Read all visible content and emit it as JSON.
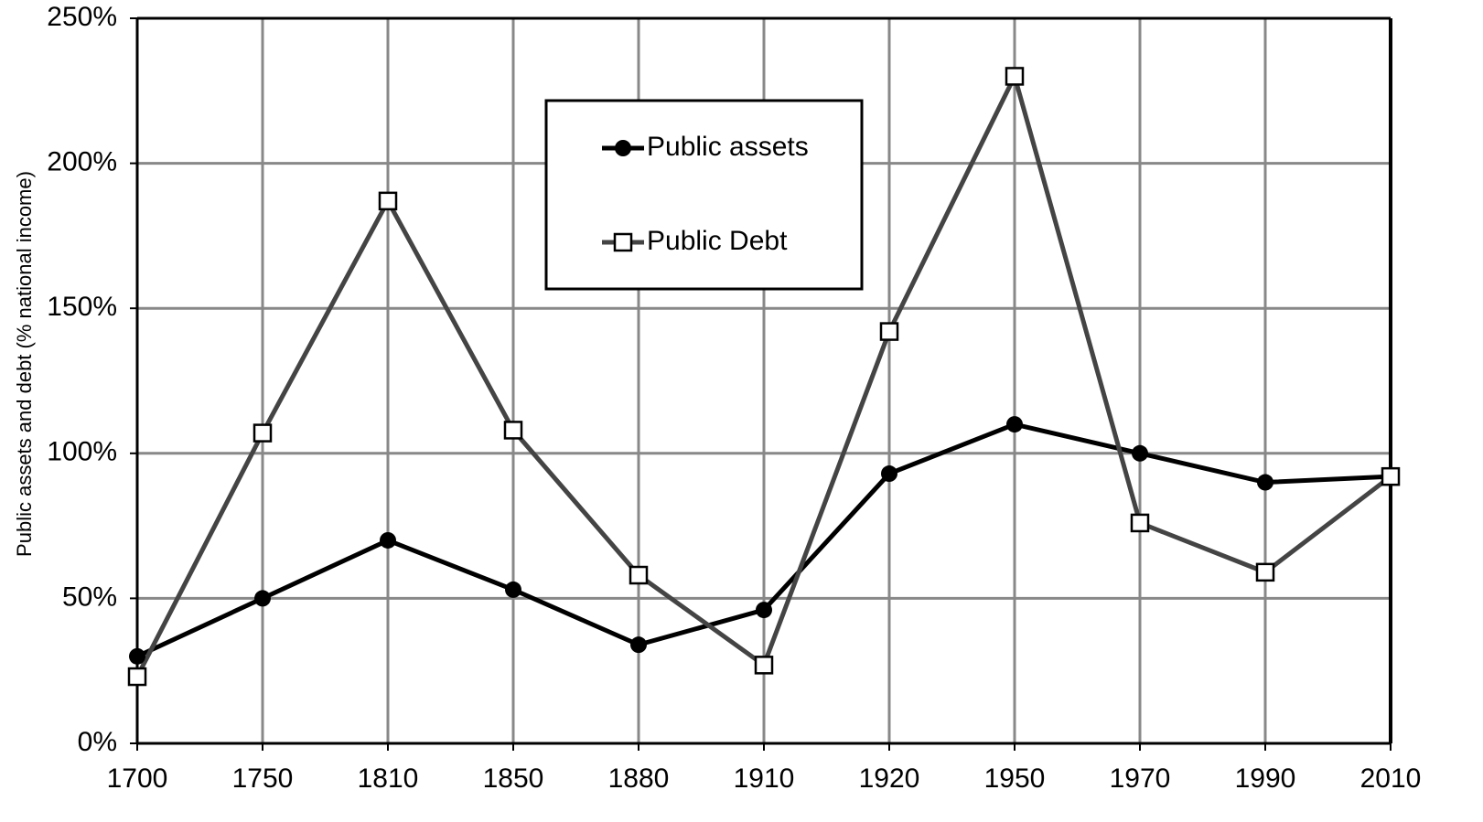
{
  "chart_data": {
    "type": "line",
    "y_label": "Public assets and debt (% national income)",
    "categories": [
      "1700",
      "1750",
      "1810",
      "1850",
      "1880",
      "1910",
      "1920",
      "1950",
      "1970",
      "1990",
      "2010"
    ],
    "series": [
      {
        "name": "Public assets",
        "color": "#000000",
        "marker": "circle",
        "values": [
          30,
          50,
          70,
          53,
          34,
          46,
          93,
          110,
          100,
          90,
          92
        ]
      },
      {
        "name": "Public Debt",
        "color": "#444444",
        "marker": "square",
        "values": [
          23,
          107,
          187,
          108,
          58,
          27,
          142,
          230,
          76,
          59,
          92
        ]
      }
    ],
    "ylim": [
      0,
      250
    ],
    "yticks": [
      {
        "value": 0,
        "label": "0%"
      },
      {
        "value": 50,
        "label": "50%"
      },
      {
        "value": 100,
        "label": "100%"
      },
      {
        "value": 150,
        "label": "150%"
      },
      {
        "value": 200,
        "label": "200%"
      },
      {
        "value": 250,
        "label": "250%"
      }
    ],
    "grid": true
  }
}
